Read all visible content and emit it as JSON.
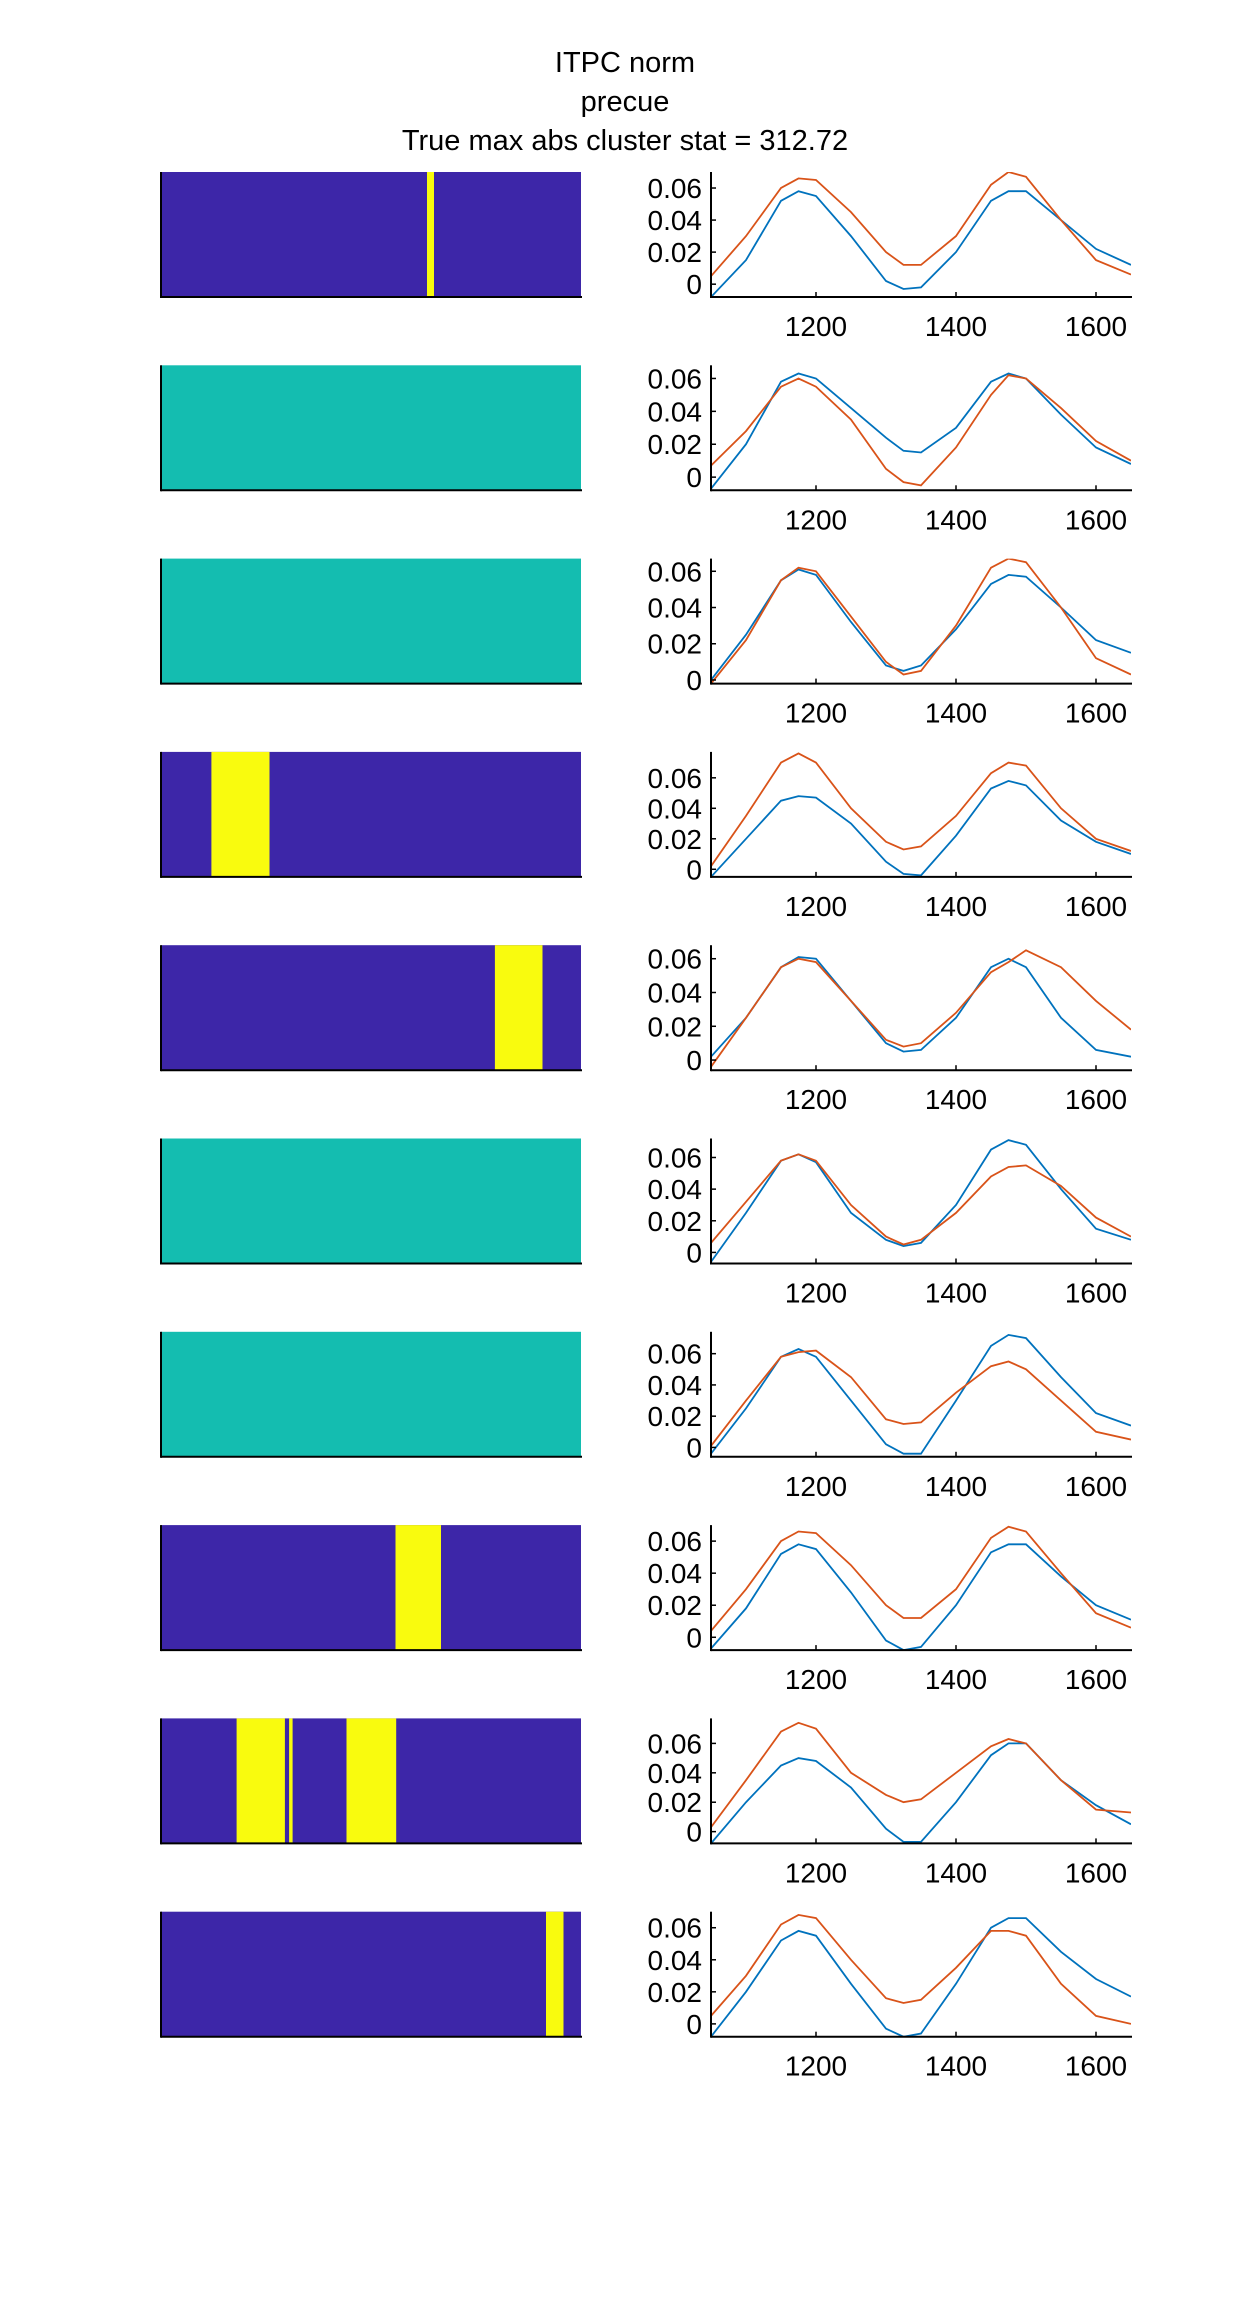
{
  "title": {
    "line1": "ITPC norm",
    "line2": "precue",
    "line3": "True max abs cluster stat = 312.72"
  },
  "colors": {
    "sig_off": "#3d26a8",
    "sig_on": "#f9fb0e",
    "all_off": "#14bdb0",
    "series_a": "#0072bd",
    "series_b": "#d95319",
    "axis": "#000000"
  },
  "chart_data": [
    {
      "type": "heatmap",
      "row": 1,
      "x_range": [
        1050,
        1650
      ],
      "base": "sig_off",
      "on_intervals": [
        [
          1430,
          1440
        ]
      ]
    },
    {
      "type": "line",
      "row": 1,
      "x_range": [
        1050,
        1650
      ],
      "ylim": [
        -0.008,
        0.07
      ],
      "xticks": [
        1200,
        1400,
        1600
      ],
      "yticks": [
        0,
        0.02,
        0.04,
        0.06
      ],
      "series": [
        {
          "color": "series_a",
          "x": [
            1050,
            1100,
            1150,
            1175,
            1200,
            1250,
            1300,
            1325,
            1350,
            1400,
            1450,
            1475,
            1500,
            1550,
            1600,
            1650
          ],
          "y": [
            -0.008,
            0.015,
            0.052,
            0.058,
            0.055,
            0.03,
            0.002,
            -0.003,
            -0.002,
            0.02,
            0.052,
            0.058,
            0.058,
            0.04,
            0.022,
            0.012
          ]
        },
        {
          "color": "series_b",
          "x": [
            1050,
            1100,
            1150,
            1175,
            1200,
            1250,
            1300,
            1325,
            1350,
            1400,
            1450,
            1475,
            1500,
            1550,
            1600,
            1650
          ],
          "y": [
            0.005,
            0.03,
            0.06,
            0.066,
            0.065,
            0.045,
            0.02,
            0.012,
            0.012,
            0.03,
            0.062,
            0.07,
            0.067,
            0.04,
            0.015,
            0.006
          ]
        }
      ]
    },
    {
      "type": "heatmap",
      "row": 2,
      "x_range": [
        1050,
        1650
      ],
      "base": "all_off",
      "on_intervals": []
    },
    {
      "type": "line",
      "row": 2,
      "x_range": [
        1050,
        1650
      ],
      "ylim": [
        -0.008,
        0.068
      ],
      "xticks": [
        1200,
        1400,
        1600
      ],
      "yticks": [
        0,
        0.02,
        0.04,
        0.06
      ],
      "series": [
        {
          "color": "series_a",
          "x": [
            1050,
            1100,
            1150,
            1175,
            1200,
            1250,
            1300,
            1325,
            1350,
            1400,
            1450,
            1475,
            1500,
            1550,
            1600,
            1650
          ],
          "y": [
            -0.007,
            0.02,
            0.058,
            0.063,
            0.06,
            0.042,
            0.024,
            0.016,
            0.015,
            0.03,
            0.058,
            0.063,
            0.06,
            0.038,
            0.018,
            0.008
          ]
        },
        {
          "color": "series_b",
          "x": [
            1050,
            1100,
            1150,
            1175,
            1200,
            1250,
            1300,
            1325,
            1350,
            1400,
            1450,
            1475,
            1500,
            1550,
            1600,
            1650
          ],
          "y": [
            0.007,
            0.028,
            0.055,
            0.06,
            0.055,
            0.035,
            0.005,
            -0.003,
            -0.005,
            0.018,
            0.05,
            0.062,
            0.06,
            0.042,
            0.022,
            0.01
          ]
        }
      ]
    },
    {
      "type": "heatmap",
      "row": 3,
      "x_range": [
        1050,
        1650
      ],
      "base": "all_off",
      "on_intervals": []
    },
    {
      "type": "line",
      "row": 3,
      "x_range": [
        1050,
        1650
      ],
      "ylim": [
        -0.002,
        0.067
      ],
      "xticks": [
        1200,
        1400,
        1600
      ],
      "yticks": [
        0,
        0.02,
        0.04,
        0.06
      ],
      "series": [
        {
          "color": "series_a",
          "x": [
            1050,
            1100,
            1150,
            1175,
            1200,
            1250,
            1300,
            1325,
            1350,
            1400,
            1450,
            1475,
            1500,
            1550,
            1600,
            1650
          ],
          "y": [
            0,
            0.025,
            0.055,
            0.061,
            0.058,
            0.032,
            0.008,
            0.005,
            0.008,
            0.028,
            0.053,
            0.058,
            0.057,
            0.04,
            0.022,
            0.015
          ]
        },
        {
          "color": "series_b",
          "x": [
            1050,
            1100,
            1150,
            1175,
            1200,
            1250,
            1300,
            1325,
            1350,
            1400,
            1450,
            1475,
            1500,
            1550,
            1600,
            1650
          ],
          "y": [
            -0.002,
            0.022,
            0.055,
            0.062,
            0.06,
            0.035,
            0.01,
            0.003,
            0.005,
            0.03,
            0.062,
            0.067,
            0.065,
            0.04,
            0.012,
            0.003
          ]
        }
      ]
    },
    {
      "type": "heatmap",
      "row": 4,
      "x_range": [
        1050,
        1650
      ],
      "base": "sig_off",
      "on_intervals": [
        [
          1122,
          1205
        ]
      ]
    },
    {
      "type": "line",
      "row": 4,
      "x_range": [
        1050,
        1650
      ],
      "ylim": [
        -0.005,
        0.077
      ],
      "xticks": [
        1200,
        1400,
        1600
      ],
      "yticks": [
        0,
        0.02,
        0.04,
        0.06
      ],
      "series": [
        {
          "color": "series_a",
          "x": [
            1050,
            1100,
            1150,
            1175,
            1200,
            1250,
            1300,
            1325,
            1350,
            1400,
            1450,
            1475,
            1500,
            1550,
            1600,
            1650
          ],
          "y": [
            -0.005,
            0.02,
            0.045,
            0.048,
            0.047,
            0.03,
            0.005,
            -0.003,
            -0.004,
            0.022,
            0.053,
            0.058,
            0.055,
            0.032,
            0.018,
            0.01
          ]
        },
        {
          "color": "series_b",
          "x": [
            1050,
            1100,
            1150,
            1175,
            1200,
            1250,
            1300,
            1325,
            1350,
            1400,
            1450,
            1475,
            1500,
            1550,
            1600,
            1650
          ],
          "y": [
            0.002,
            0.035,
            0.07,
            0.076,
            0.07,
            0.04,
            0.018,
            0.013,
            0.015,
            0.035,
            0.063,
            0.07,
            0.068,
            0.04,
            0.02,
            0.012
          ]
        }
      ]
    },
    {
      "type": "heatmap",
      "row": 5,
      "x_range": [
        1050,
        1650
      ],
      "base": "sig_off",
      "on_intervals": [
        [
          1527,
          1595
        ]
      ]
    },
    {
      "type": "line",
      "row": 5,
      "x_range": [
        1050,
        1650
      ],
      "ylim": [
        -0.006,
        0.068
      ],
      "xticks": [
        1200,
        1400,
        1600
      ],
      "yticks": [
        0,
        0.02,
        0.04,
        0.06
      ],
      "series": [
        {
          "color": "series_a",
          "x": [
            1050,
            1100,
            1150,
            1175,
            1200,
            1250,
            1300,
            1325,
            1350,
            1400,
            1450,
            1475,
            1500,
            1550,
            1600,
            1650
          ],
          "y": [
            0.002,
            0.025,
            0.055,
            0.061,
            0.06,
            0.035,
            0.01,
            0.005,
            0.006,
            0.025,
            0.055,
            0.06,
            0.055,
            0.025,
            0.006,
            0.002
          ]
        },
        {
          "color": "series_b",
          "x": [
            1050,
            1100,
            1150,
            1175,
            1200,
            1250,
            1300,
            1325,
            1350,
            1400,
            1450,
            1475,
            1500,
            1550,
            1600,
            1650
          ],
          "y": [
            -0.004,
            0.025,
            0.055,
            0.06,
            0.058,
            0.035,
            0.012,
            0.008,
            0.01,
            0.028,
            0.052,
            0.058,
            0.065,
            0.055,
            0.035,
            0.018
          ]
        }
      ]
    },
    {
      "type": "heatmap",
      "row": 6,
      "x_range": [
        1050,
        1650
      ],
      "base": "all_off",
      "on_intervals": []
    },
    {
      "type": "line",
      "row": 6,
      "x_range": [
        1050,
        1650
      ],
      "ylim": [
        -0.007,
        0.072
      ],
      "xticks": [
        1200,
        1400,
        1600
      ],
      "yticks": [
        0,
        0.02,
        0.04,
        0.06
      ],
      "series": [
        {
          "color": "series_a",
          "x": [
            1050,
            1100,
            1150,
            1175,
            1200,
            1250,
            1300,
            1325,
            1350,
            1400,
            1450,
            1475,
            1500,
            1550,
            1600,
            1650
          ],
          "y": [
            -0.006,
            0.025,
            0.058,
            0.062,
            0.057,
            0.025,
            0.008,
            0.004,
            0.006,
            0.03,
            0.065,
            0.071,
            0.068,
            0.04,
            0.015,
            0.008
          ]
        },
        {
          "color": "series_b",
          "x": [
            1050,
            1100,
            1150,
            1175,
            1200,
            1250,
            1300,
            1325,
            1350,
            1400,
            1450,
            1475,
            1500,
            1550,
            1600,
            1650
          ],
          "y": [
            0.006,
            0.032,
            0.058,
            0.062,
            0.058,
            0.03,
            0.01,
            0.005,
            0.008,
            0.025,
            0.048,
            0.054,
            0.055,
            0.042,
            0.022,
            0.01
          ]
        }
      ]
    },
    {
      "type": "heatmap",
      "row": 7,
      "x_range": [
        1050,
        1650
      ],
      "base": "all_off",
      "on_intervals": []
    },
    {
      "type": "line",
      "row": 7,
      "x_range": [
        1050,
        1650
      ],
      "ylim": [
        -0.006,
        0.074
      ],
      "xticks": [
        1200,
        1400,
        1600
      ],
      "yticks": [
        0,
        0.02,
        0.04,
        0.06
      ],
      "series": [
        {
          "color": "series_a",
          "x": [
            1050,
            1100,
            1150,
            1175,
            1200,
            1250,
            1300,
            1325,
            1350,
            1400,
            1450,
            1475,
            1500,
            1550,
            1600,
            1650
          ],
          "y": [
            -0.004,
            0.025,
            0.058,
            0.063,
            0.058,
            0.03,
            0.002,
            -0.004,
            -0.004,
            0.03,
            0.065,
            0.072,
            0.07,
            0.045,
            0.022,
            0.014
          ]
        },
        {
          "color": "series_b",
          "x": [
            1050,
            1100,
            1150,
            1175,
            1200,
            1250,
            1300,
            1325,
            1350,
            1400,
            1450,
            1475,
            1500,
            1550,
            1600,
            1650
          ],
          "y": [
            0.001,
            0.03,
            0.058,
            0.061,
            0.062,
            0.045,
            0.018,
            0.015,
            0.016,
            0.035,
            0.052,
            0.055,
            0.05,
            0.03,
            0.01,
            0.005
          ]
        }
      ]
    },
    {
      "type": "heatmap",
      "row": 8,
      "x_range": [
        1050,
        1650
      ],
      "base": "sig_off",
      "on_intervals": [
        [
          1385,
          1450
        ]
      ]
    },
    {
      "type": "line",
      "row": 8,
      "x_range": [
        1050,
        1650
      ],
      "ylim": [
        -0.008,
        0.07
      ],
      "xticks": [
        1200,
        1400,
        1600
      ],
      "yticks": [
        0,
        0.02,
        0.04,
        0.06
      ],
      "series": [
        {
          "color": "series_a",
          "x": [
            1050,
            1100,
            1150,
            1175,
            1200,
            1250,
            1300,
            1325,
            1350,
            1400,
            1450,
            1475,
            1500,
            1550,
            1600,
            1650
          ],
          "y": [
            -0.007,
            0.018,
            0.052,
            0.058,
            0.055,
            0.028,
            -0.002,
            -0.008,
            -0.006,
            0.02,
            0.053,
            0.058,
            0.058,
            0.038,
            0.02,
            0.011
          ]
        },
        {
          "color": "series_b",
          "x": [
            1050,
            1100,
            1150,
            1175,
            1200,
            1250,
            1300,
            1325,
            1350,
            1400,
            1450,
            1475,
            1500,
            1550,
            1600,
            1650
          ],
          "y": [
            0.004,
            0.03,
            0.06,
            0.066,
            0.065,
            0.045,
            0.02,
            0.012,
            0.012,
            0.03,
            0.062,
            0.069,
            0.066,
            0.04,
            0.015,
            0.006
          ]
        }
      ]
    },
    {
      "type": "heatmap",
      "row": 9,
      "x_range": [
        1050,
        1650
      ],
      "base": "sig_off",
      "on_intervals": [
        [
          1158,
          1227
        ],
        [
          1233,
          1238
        ],
        [
          1315,
          1386
        ]
      ]
    },
    {
      "type": "line",
      "row": 9,
      "x_range": [
        1050,
        1650
      ],
      "ylim": [
        -0.008,
        0.077
      ],
      "xticks": [
        1200,
        1400,
        1600
      ],
      "yticks": [
        0,
        0.02,
        0.04,
        0.06
      ],
      "series": [
        {
          "color": "series_a",
          "x": [
            1050,
            1100,
            1150,
            1175,
            1200,
            1250,
            1300,
            1325,
            1350,
            1400,
            1450,
            1475,
            1500,
            1550,
            1600,
            1650
          ],
          "y": [
            -0.008,
            0.02,
            0.045,
            0.05,
            0.048,
            0.03,
            0.002,
            -0.007,
            -0.007,
            0.02,
            0.052,
            0.06,
            0.06,
            0.035,
            0.018,
            0.005
          ]
        },
        {
          "color": "series_b",
          "x": [
            1050,
            1100,
            1150,
            1175,
            1200,
            1250,
            1300,
            1325,
            1350,
            1400,
            1450,
            1475,
            1500,
            1550,
            1600,
            1650
          ],
          "y": [
            0.003,
            0.035,
            0.068,
            0.074,
            0.07,
            0.04,
            0.025,
            0.02,
            0.022,
            0.04,
            0.058,
            0.063,
            0.06,
            0.035,
            0.015,
            0.013
          ]
        }
      ]
    },
    {
      "type": "heatmap",
      "row": 10,
      "x_range": [
        1050,
        1650
      ],
      "base": "sig_off",
      "on_intervals": [
        [
          1600,
          1625
        ]
      ]
    },
    {
      "type": "line",
      "row": 10,
      "x_range": [
        1050,
        1650
      ],
      "ylim": [
        -0.008,
        0.07
      ],
      "xticks": [
        1200,
        1400,
        1600
      ],
      "yticks": [
        0,
        0.02,
        0.04,
        0.06
      ],
      "series": [
        {
          "color": "series_a",
          "x": [
            1050,
            1100,
            1150,
            1175,
            1200,
            1250,
            1300,
            1325,
            1350,
            1400,
            1450,
            1475,
            1500,
            1550,
            1600,
            1650
          ],
          "y": [
            -0.008,
            0.02,
            0.052,
            0.058,
            0.055,
            0.025,
            -0.003,
            -0.008,
            -0.006,
            0.025,
            0.06,
            0.066,
            0.066,
            0.045,
            0.028,
            0.017
          ]
        },
        {
          "color": "series_b",
          "x": [
            1050,
            1100,
            1150,
            1175,
            1200,
            1250,
            1300,
            1325,
            1350,
            1400,
            1450,
            1475,
            1500,
            1550,
            1600,
            1650
          ],
          "y": [
            0.005,
            0.03,
            0.062,
            0.068,
            0.066,
            0.04,
            0.016,
            0.013,
            0.015,
            0.035,
            0.058,
            0.058,
            0.055,
            0.025,
            0.005,
            0
          ]
        }
      ]
    }
  ]
}
